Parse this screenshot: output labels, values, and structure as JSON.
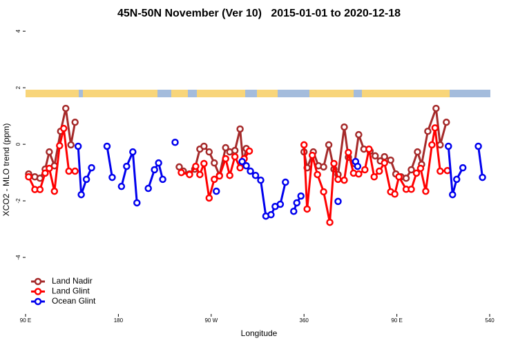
{
  "chart_data": {
    "type": "line",
    "title": "45N-50N November (Ver 10)   2015-01-01 to 2020-12-18",
    "x_label": "Longitude",
    "y_label": "XCO2 - MLO trend (ppm)",
    "xlim": [
      90,
      540
    ],
    "ylim": [
      -6,
      4.2
    ],
    "xticks": [
      {
        "value": 90,
        "label": "90 E"
      },
      180,
      {
        "value": 270,
        "label": "90 W"
      },
      360,
      {
        "value": 450,
        "label": "90 E"
      },
      540
    ],
    "yticks": [
      4,
      2,
      0,
      -2,
      -4
    ],
    "legend": "bottom-left",
    "series": [
      {
        "name": "Land Nadir",
        "color": "#a52a2a",
        "x": [
          93,
          99,
          104,
          109,
          113,
          118,
          124,
          129,
          134,
          138,
          null,
          239,
          243,
          249,
          254,
          259,
          263,
          268,
          273,
          278,
          284,
          288,
          293,
          298,
          301,
          304,
          null,
          360,
          363,
          369,
          374,
          379,
          384,
          389,
          393,
          399,
          403,
          409,
          413,
          418,
          424,
          429,
          434,
          438,
          444,
          449,
          454,
          459,
          464,
          470,
          474,
          480,
          488,
          492,
          498
        ],
        "values": [
          -1.05,
          -1.15,
          -1.2,
          -0.88,
          -0.27,
          -0.76,
          0.46,
          1.27,
          -0.02,
          0.78,
          null,
          -0.8,
          -0.95,
          -1.05,
          -0.88,
          -0.17,
          -0.07,
          -0.27,
          -0.66,
          -1.1,
          -0.12,
          -0.27,
          -0.22,
          0.54,
          -0.66,
          -0.15,
          null,
          -0.27,
          -0.83,
          -0.27,
          -0.76,
          -0.8,
          -0.02,
          -0.88,
          -1.07,
          0.61,
          -0.46,
          -0.68,
          0.34,
          -0.17,
          -0.24,
          -0.41,
          -0.59,
          -0.44,
          -0.56,
          -1.05,
          -1.15,
          -1.2,
          -0.9,
          -0.27,
          -0.71,
          0.46,
          1.27,
          -0.02,
          0.78
        ]
      },
      {
        "name": "Land Glint",
        "color": "#ff0000",
        "x": [
          93,
          99,
          104,
          109,
          113,
          118,
          123,
          127,
          132,
          138,
          null,
          241,
          249,
          255,
          259,
          263,
          268,
          273,
          278,
          284,
          288,
          293,
          298,
          302,
          307,
          null,
          360,
          363,
          368,
          373,
          379,
          385,
          389,
          393,
          399,
          403,
          408,
          413,
          419,
          423,
          428,
          433,
          438,
          444,
          448,
          452,
          459,
          464,
          469,
          473,
          478,
          484,
          487,
          492,
          499
        ],
        "values": [
          -1.15,
          -1.6,
          -1.6,
          -1.02,
          -0.85,
          -1.66,
          -0.05,
          0.56,
          -0.95,
          -0.95,
          null,
          -1.0,
          -1.07,
          -0.78,
          -1.07,
          -0.68,
          -1.9,
          -1.24,
          -1.12,
          -0.51,
          -1.1,
          -0.44,
          -0.83,
          -0.51,
          -0.24,
          null,
          -0.02,
          -2.29,
          -0.39,
          -1.07,
          -1.68,
          -2.76,
          -0.68,
          -1.24,
          -1.27,
          -0.29,
          -1.02,
          -1.05,
          -0.9,
          -0.17,
          -1.15,
          -0.95,
          -0.66,
          -1.68,
          -1.76,
          -1.15,
          -1.59,
          -1.59,
          -1.02,
          -0.85,
          -1.66,
          -0.02,
          0.58,
          -0.95,
          -0.93
        ]
      },
      {
        "name": "Ocean Glint",
        "color": "#0000ee",
        "x": [
          141,
          144,
          149,
          154,
          null,
          169,
          174,
          null,
          183,
          188,
          194,
          198,
          null,
          209,
          215,
          219,
          223,
          null,
          235,
          null,
          275,
          null,
          300,
          304,
          308,
          313,
          318,
          323,
          328,
          332,
          337,
          342,
          null,
          350,
          353,
          357,
          null,
          393,
          null,
          410,
          412,
          null,
          500,
          504,
          508,
          514,
          null,
          529,
          533
        ],
        "values": [
          -0.07,
          -1.78,
          -1.24,
          -0.83,
          null,
          -0.07,
          -1.17,
          null,
          -1.49,
          -0.78,
          -0.27,
          -2.07,
          null,
          -1.56,
          -0.9,
          -0.66,
          -1.24,
          null,
          0.07,
          null,
          -1.66,
          null,
          -0.61,
          -0.76,
          -0.95,
          -1.1,
          -1.27,
          -2.54,
          -2.49,
          -2.2,
          -2.12,
          -1.34,
          null,
          -2.37,
          -2.07,
          -1.83,
          null,
          -2.02,
          null,
          -0.61,
          -0.78,
          null,
          -0.07,
          -1.78,
          -1.24,
          -0.83,
          null,
          -0.07,
          -1.17
        ]
      }
    ]
  }
}
